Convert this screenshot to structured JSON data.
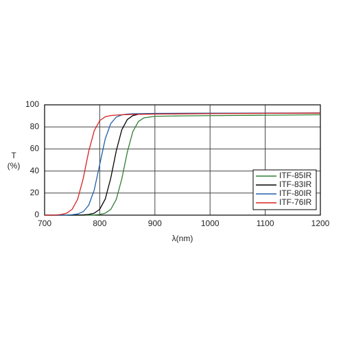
{
  "chart_data": {
    "type": "line",
    "x_label": "λ(nm)",
    "y_label": "T",
    "y_unit": "(%)",
    "x": [
      700,
      710,
      720,
      730,
      740,
      750,
      760,
      770,
      780,
      790,
      800,
      810,
      820,
      830,
      840,
      850,
      860,
      870,
      880,
      900,
      950,
      1000,
      1100,
      1200
    ],
    "series": [
      {
        "name": "ITF-85IR",
        "color": "#2e7d32",
        "values": [
          0,
          0,
          0,
          0,
          0,
          0,
          0,
          0,
          0.1,
          0.2,
          0.6,
          1.8,
          5.2,
          14.3,
          32.9,
          57.2,
          75.7,
          84.8,
          88.2,
          89.6,
          90,
          90.2,
          90.6,
          91
        ]
      },
      {
        "name": "ITF-83IR",
        "color": "#000000",
        "values": [
          0,
          0,
          0,
          0,
          0,
          0,
          0.1,
          0.2,
          0.6,
          1.8,
          5.3,
          14.6,
          33.6,
          58.4,
          77.4,
          86.7,
          90.2,
          91.4,
          91.8,
          92,
          92.2,
          92.3,
          92.4,
          92.5
        ]
      },
      {
        "name": "ITF-80IR",
        "color": "#1f5fa8",
        "values": [
          0,
          0,
          0,
          0,
          0.1,
          0.4,
          1.1,
          3.1,
          9.0,
          22.8,
          46,
          69.2,
          83,
          88.9,
          90.9,
          91.6,
          91.9,
          92,
          92.1,
          92.2,
          92.3,
          92.4,
          92.5,
          92.6
        ]
      },
      {
        "name": "ITF-76IR",
        "color": "#d62020",
        "values": [
          0,
          0,
          0.1,
          0.6,
          1.8,
          5.3,
          14.5,
          33.2,
          57.8,
          76.5,
          85.7,
          89.2,
          90.3,
          90.7,
          91,
          91.2,
          91.3,
          91.4,
          91.5,
          91.6,
          91.8,
          92,
          92.3,
          92.5
        ]
      }
    ],
    "xlim": [
      700,
      1200
    ],
    "xticks": [
      700,
      800,
      900,
      1000,
      1100,
      1200
    ],
    "ylim": [
      0,
      100
    ],
    "yticks": [
      0,
      20,
      40,
      60,
      80,
      100
    ],
    "grid": true,
    "legend": "lower-right"
  }
}
